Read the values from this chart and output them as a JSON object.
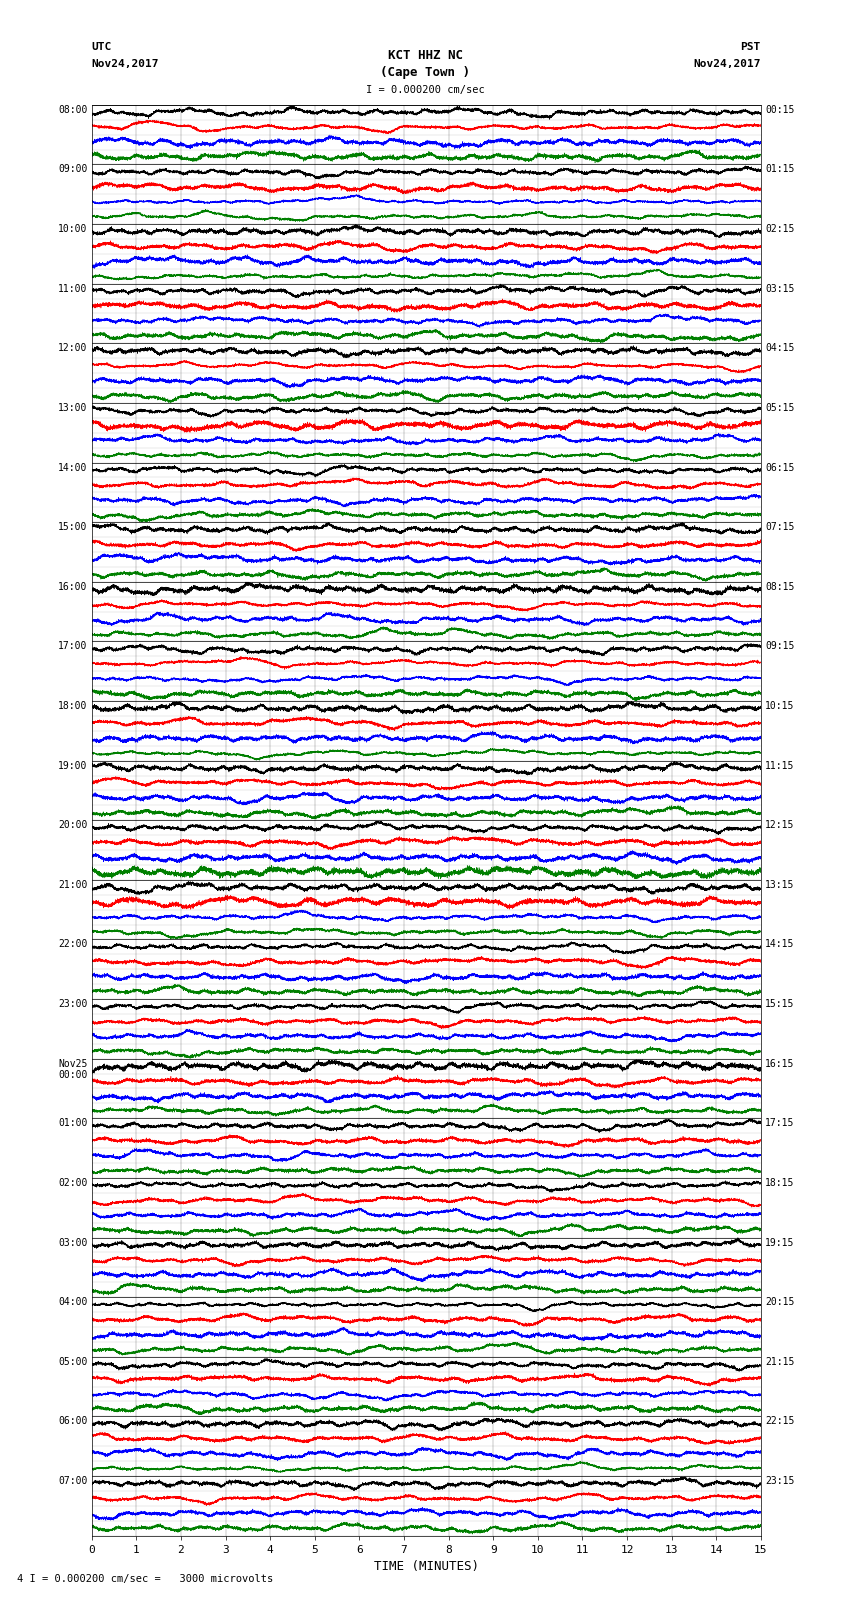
{
  "title_line1": "KCT HHZ NC",
  "title_line2": "(Cape Town )",
  "scale_text": "I = 0.000200 cm/sec",
  "footer_text": "4 I = 0.000200 cm/sec =   3000 microvolts",
  "utc_label": "UTC",
  "utc_date": "Nov24,2017",
  "pst_label": "PST",
  "pst_date": "Nov24,2017",
  "xlabel": "TIME (MINUTES)",
  "left_times": [
    "08:00",
    "09:00",
    "10:00",
    "11:00",
    "12:00",
    "13:00",
    "14:00",
    "15:00",
    "16:00",
    "17:00",
    "18:00",
    "19:00",
    "20:00",
    "21:00",
    "22:00",
    "23:00",
    "Nov25\n00:00",
    "01:00",
    "02:00",
    "03:00",
    "04:00",
    "05:00",
    "06:00",
    "07:00"
  ],
  "right_times": [
    "00:15",
    "01:15",
    "02:15",
    "03:15",
    "04:15",
    "05:15",
    "06:15",
    "07:15",
    "08:15",
    "09:15",
    "10:15",
    "11:15",
    "12:15",
    "13:15",
    "14:15",
    "15:15",
    "16:15",
    "17:15",
    "18:15",
    "19:15",
    "20:15",
    "21:15",
    "22:15",
    "23:15"
  ],
  "num_traces": 24,
  "subtrace_colors": [
    "black",
    "red",
    "blue",
    "green"
  ],
  "num_subtraces": 4,
  "xlim": [
    0,
    15
  ],
  "xticks": [
    0,
    1,
    2,
    3,
    4,
    5,
    6,
    7,
    8,
    9,
    10,
    11,
    12,
    13,
    14,
    15
  ],
  "bg_color": "white",
  "plot_area_bg": "white",
  "random_seed": 42,
  "n_points": 9000,
  "lw": 0.4
}
